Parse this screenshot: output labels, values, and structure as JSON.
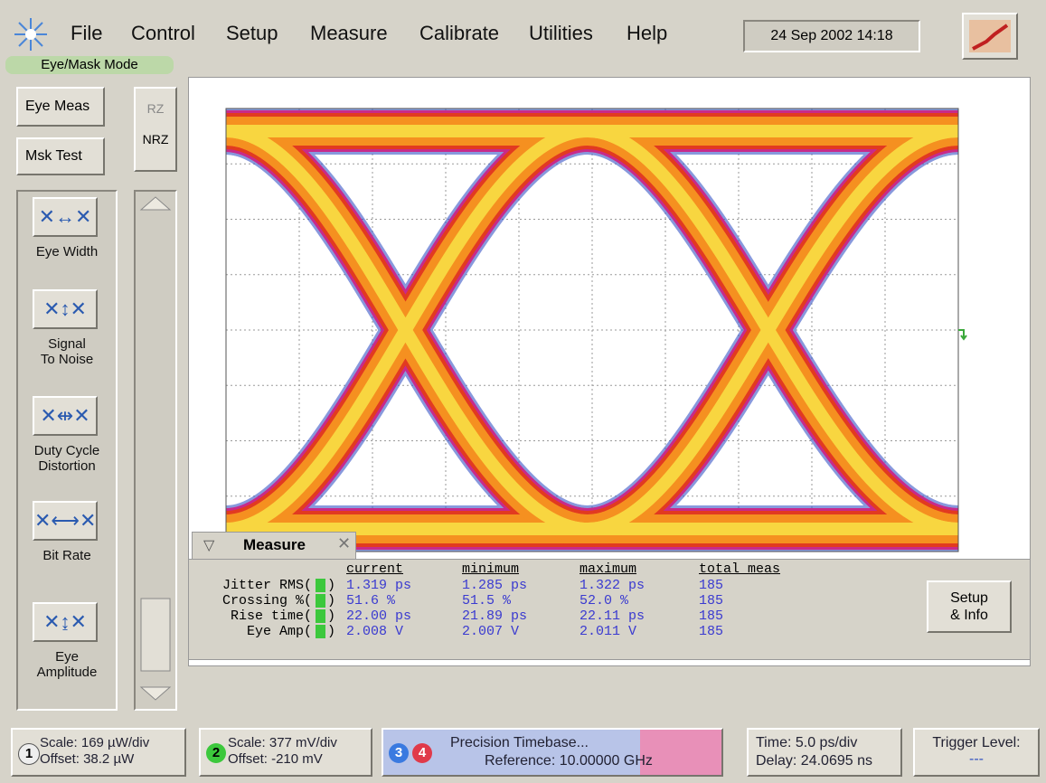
{
  "menu": {
    "items": [
      "File",
      "Control",
      "Setup",
      "Measure",
      "Calibrate",
      "Utilities",
      "Help"
    ],
    "datetime": "24 Sep 2002  14:18"
  },
  "mode": "Eye/Mask Mode",
  "toggles": {
    "eye_meas": "Eye Meas",
    "mask_test": "Msk Test",
    "rz": "RZ",
    "nrz": "NRZ"
  },
  "tools": [
    {
      "lines": [
        "Eye Width"
      ]
    },
    {
      "lines": [
        "Signal",
        "To Noise"
      ]
    },
    {
      "lines": [
        "Duty Cycle",
        "Distortion"
      ]
    },
    {
      "lines": [
        "Bit Rate"
      ]
    },
    {
      "lines": [
        "Eye",
        "Amplitude"
      ]
    }
  ],
  "measure": {
    "title": "Measure",
    "paren_close": ")",
    "headers": [
      "current",
      "minimum",
      "maximum",
      "total meas"
    ],
    "rows": [
      {
        "label": "Jitter RMS(",
        "channel": "2",
        "current": "1.319 ps",
        "minimum": "1.285 ps",
        "maximum": "1.322 ps",
        "total": "185"
      },
      {
        "label": "Crossing %(",
        "channel": "2",
        "current": "51.6 %",
        "minimum": "51.5 %",
        "maximum": "52.0 %",
        "total": "185"
      },
      {
        "label": "Rise time(",
        "channel": "2",
        "current": "22.00 ps",
        "minimum": "21.89 ps",
        "maximum": "22.11 ps",
        "total": "185"
      },
      {
        "label": "Eye Amp(",
        "channel": "2",
        "current": "2.008 V",
        "minimum": "2.007 V",
        "maximum": "2.011 V",
        "total": "185"
      }
    ],
    "button": [
      "Setup",
      "& Info"
    ]
  },
  "status": {
    "ch1": {
      "num": "1",
      "scale": "Scale: 169 µW/div",
      "offset": "Offset: 38.2 µW"
    },
    "ch2": {
      "num": "2",
      "scale": "Scale: 377 mV/div",
      "offset": "Offset: -210 mV"
    },
    "timebase": {
      "num3": "3",
      "num4": "4",
      "title": "Precision Timebase...",
      "reference": "Reference: 10.00000 GHz"
    },
    "time": {
      "scale": "Time: 5.0 ps/div",
      "delay": "Delay: 24.0695 ns"
    },
    "trigger": {
      "title": "Trigger Level:",
      "value": "---"
    }
  }
}
